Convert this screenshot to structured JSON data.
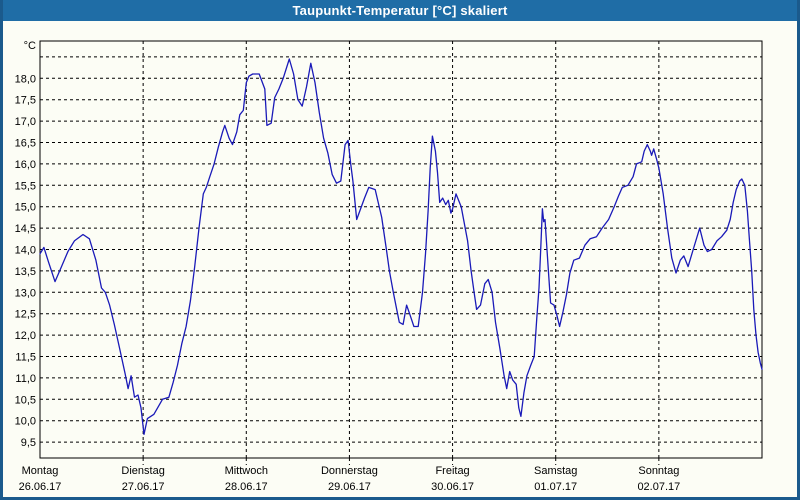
{
  "window": {
    "title": "Taupunkt-Temperatur [°C] skaliert"
  },
  "colors": {
    "titlebar": "#1f6da6",
    "title_text": "#ffffff",
    "frame": "#1b5a8c",
    "background": "#fcfdf5",
    "grid": "#000000",
    "line": "#1a1ab8"
  },
  "chart_data": {
    "type": "line",
    "title": "Taupunkt-Temperatur [°C] skaliert",
    "ylabel": "°C",
    "xlabel": "",
    "ylim": [
      9.5,
      18.5
    ],
    "x_range_hours": [
      0,
      168
    ],
    "grid": true,
    "legend": "none",
    "y_ticks": [
      {
        "v": 18.0,
        "label": "18,0"
      },
      {
        "v": 17.5,
        "label": "17,5"
      },
      {
        "v": 17.0,
        "label": "17,0"
      },
      {
        "v": 16.5,
        "label": "16,5"
      },
      {
        "v": 16.0,
        "label": "16,0"
      },
      {
        "v": 15.5,
        "label": "15,5"
      },
      {
        "v": 15.0,
        "label": "15,0"
      },
      {
        "v": 14.5,
        "label": "14,5"
      },
      {
        "v": 14.0,
        "label": "14,0"
      },
      {
        "v": 13.5,
        "label": "13,5"
      },
      {
        "v": 13.0,
        "label": "13,0"
      },
      {
        "v": 12.5,
        "label": "12,5"
      },
      {
        "v": 12.0,
        "label": "12,0"
      },
      {
        "v": 11.5,
        "label": "11,5"
      },
      {
        "v": 11.0,
        "label": "11,0"
      },
      {
        "v": 10.5,
        "label": "10,5"
      },
      {
        "v": 10.0,
        "label": "10,0"
      },
      {
        "v": 9.5,
        "label": "9,5"
      }
    ],
    "x_days": [
      {
        "name": "Montag",
        "date": "26.06.17"
      },
      {
        "name": "Dienstag",
        "date": "27.06.17"
      },
      {
        "name": "Mittwoch",
        "date": "28.06.17"
      },
      {
        "name": "Donnerstag",
        "date": "29.06.17"
      },
      {
        "name": "Freitag",
        "date": "30.06.17"
      },
      {
        "name": "Samstag",
        "date": "01.07.17"
      },
      {
        "name": "Sonntag",
        "date": "02.07.17"
      }
    ],
    "series": [
      {
        "name": "Taupunkt",
        "points": [
          [
            0,
            13.9
          ],
          [
            0.9,
            14.05
          ],
          [
            2,
            13.7
          ],
          [
            3.5,
            13.25
          ],
          [
            5,
            13.6
          ],
          [
            6.5,
            13.95
          ],
          [
            8,
            14.2
          ],
          [
            10,
            14.35
          ],
          [
            11.5,
            14.25
          ],
          [
            13,
            13.75
          ],
          [
            14.3,
            13.1
          ],
          [
            15.2,
            13.0
          ],
          [
            16.2,
            12.7
          ],
          [
            17.3,
            12.25
          ],
          [
            18.5,
            11.7
          ],
          [
            19.8,
            11.1
          ],
          [
            20.5,
            10.75
          ],
          [
            21.2,
            11.05
          ],
          [
            22,
            10.55
          ],
          [
            22.8,
            10.6
          ],
          [
            23.5,
            10.3
          ],
          [
            24.2,
            9.68
          ],
          [
            25,
            10.05
          ],
          [
            26.5,
            10.15
          ],
          [
            28.5,
            10.5
          ],
          [
            30,
            10.55
          ],
          [
            31,
            10.9
          ],
          [
            32,
            11.3
          ],
          [
            33,
            11.8
          ],
          [
            34,
            12.2
          ],
          [
            35,
            12.8
          ],
          [
            36,
            13.6
          ],
          [
            37,
            14.5
          ],
          [
            38,
            15.3
          ],
          [
            38.7,
            15.45
          ],
          [
            39.5,
            15.7
          ],
          [
            40.5,
            16.0
          ],
          [
            41.5,
            16.4
          ],
          [
            42.5,
            16.75
          ],
          [
            43,
            16.9
          ],
          [
            44,
            16.6
          ],
          [
            44.8,
            16.45
          ],
          [
            45.8,
            16.75
          ],
          [
            46.5,
            17.15
          ],
          [
            47.3,
            17.25
          ],
          [
            48,
            17.9
          ],
          [
            48.6,
            18.05
          ],
          [
            49.5,
            18.1
          ],
          [
            51,
            18.1
          ],
          [
            52.3,
            17.75
          ],
          [
            52.8,
            16.9
          ],
          [
            53.8,
            16.95
          ],
          [
            54.6,
            17.55
          ],
          [
            55.6,
            17.75
          ],
          [
            56.6,
            18.0
          ],
          [
            58,
            18.45
          ],
          [
            59,
            18.1
          ],
          [
            60,
            17.5
          ],
          [
            61,
            17.35
          ],
          [
            62,
            17.8
          ],
          [
            63,
            18.35
          ],
          [
            64,
            17.9
          ],
          [
            65,
            17.2
          ],
          [
            66,
            16.6
          ],
          [
            67,
            16.25
          ],
          [
            68,
            15.75
          ],
          [
            69,
            15.55
          ],
          [
            70,
            15.6
          ],
          [
            71,
            16.45
          ],
          [
            71.7,
            16.55
          ],
          [
            72.3,
            16.0
          ],
          [
            72.8,
            15.6
          ],
          [
            73.7,
            14.7
          ],
          [
            75.5,
            15.2
          ],
          [
            76.5,
            15.45
          ],
          [
            78,
            15.4
          ],
          [
            79.5,
            14.75
          ],
          [
            80.6,
            14.0
          ],
          [
            81.3,
            13.5
          ],
          [
            82.2,
            13.0
          ],
          [
            83,
            12.6
          ],
          [
            83.6,
            12.3
          ],
          [
            84.5,
            12.25
          ],
          [
            85.3,
            12.7
          ],
          [
            86,
            12.5
          ],
          [
            87,
            12.2
          ],
          [
            88,
            12.2
          ],
          [
            89,
            13.0
          ],
          [
            89.7,
            13.9
          ],
          [
            90.3,
            14.9
          ],
          [
            90.8,
            15.9
          ],
          [
            91.3,
            16.65
          ],
          [
            92,
            16.3
          ],
          [
            92.5,
            15.8
          ],
          [
            93,
            15.1
          ],
          [
            93.7,
            15.2
          ],
          [
            94.4,
            15.05
          ],
          [
            95,
            15.15
          ],
          [
            95.6,
            14.85
          ],
          [
            96,
            14.95
          ],
          [
            96.8,
            15.3
          ],
          [
            98,
            15.0
          ],
          [
            99.5,
            14.2
          ],
          [
            100.3,
            13.5
          ],
          [
            101,
            13.0
          ],
          [
            101.6,
            12.6
          ],
          [
            102.5,
            12.7
          ],
          [
            103.5,
            13.2
          ],
          [
            104.3,
            13.3
          ],
          [
            105.2,
            13.0
          ],
          [
            106,
            12.3
          ],
          [
            107,
            11.7
          ],
          [
            108,
            11.05
          ],
          [
            108.6,
            10.75
          ],
          [
            109.3,
            11.15
          ],
          [
            110,
            10.95
          ],
          [
            110.8,
            10.85
          ],
          [
            111.4,
            10.3
          ],
          [
            111.9,
            10.1
          ],
          [
            112.6,
            10.65
          ],
          [
            113.3,
            11.05
          ],
          [
            114.2,
            11.3
          ],
          [
            115,
            11.5
          ],
          [
            115.6,
            12.4
          ],
          [
            116.1,
            13.1
          ],
          [
            116.5,
            14.0
          ],
          [
            116.9,
            14.95
          ],
          [
            117.2,
            14.65
          ],
          [
            117.5,
            14.7
          ],
          [
            118.3,
            13.5
          ],
          [
            118.8,
            12.75
          ],
          [
            119.6,
            12.7
          ],
          [
            120.3,
            12.45
          ],
          [
            120.9,
            12.2
          ],
          [
            121.7,
            12.55
          ],
          [
            122.5,
            12.95
          ],
          [
            123.3,
            13.45
          ],
          [
            124.2,
            13.75
          ],
          [
            125.5,
            13.8
          ],
          [
            126.8,
            14.1
          ],
          [
            128,
            14.25
          ],
          [
            129.5,
            14.3
          ],
          [
            130.8,
            14.5
          ],
          [
            132.3,
            14.7
          ],
          [
            133.6,
            15.0
          ],
          [
            134.6,
            15.25
          ],
          [
            135.5,
            15.45
          ],
          [
            136.8,
            15.5
          ],
          [
            138,
            15.7
          ],
          [
            138.8,
            16.0
          ],
          [
            140,
            16.05
          ],
          [
            140.6,
            16.3
          ],
          [
            141.3,
            16.45
          ],
          [
            142,
            16.3
          ],
          [
            142.3,
            16.2
          ],
          [
            142.8,
            16.35
          ],
          [
            143.5,
            16.1
          ],
          [
            144,
            15.9
          ],
          [
            145,
            15.3
          ],
          [
            146,
            14.5
          ],
          [
            147,
            13.8
          ],
          [
            148,
            13.45
          ],
          [
            149,
            13.75
          ],
          [
            149.8,
            13.85
          ],
          [
            150.8,
            13.6
          ],
          [
            152,
            14.0
          ],
          [
            153.5,
            14.5
          ],
          [
            154.5,
            14.1
          ],
          [
            155.3,
            13.95
          ],
          [
            156.3,
            14.0
          ],
          [
            157.5,
            14.2
          ],
          [
            158.6,
            14.3
          ],
          [
            159.8,
            14.45
          ],
          [
            160.6,
            14.7
          ],
          [
            161.3,
            15.1
          ],
          [
            162,
            15.4
          ],
          [
            162.8,
            15.6
          ],
          [
            163.3,
            15.65
          ],
          [
            164,
            15.5
          ],
          [
            164.6,
            14.9
          ],
          [
            165.1,
            14.2
          ],
          [
            165.6,
            13.5
          ],
          [
            166.1,
            12.6
          ],
          [
            166.6,
            12.0
          ],
          [
            167.1,
            11.6
          ],
          [
            167.6,
            11.35
          ],
          [
            168,
            11.2
          ]
        ]
      }
    ]
  }
}
